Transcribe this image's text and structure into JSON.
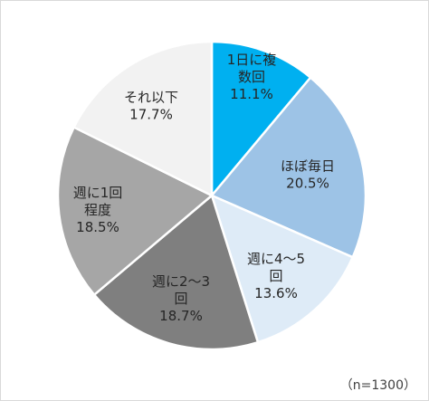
{
  "chart_data": {
    "type": "pie",
    "start_angle_deg": 0,
    "direction": "clockwise",
    "slices": [
      {
        "label": "1日に複数回",
        "label_lines": [
          "1日に複",
          "数回"
        ],
        "value": 11.1,
        "value_text": "11.1%",
        "color": "#00b0f0"
      },
      {
        "label": "ほぼ毎日",
        "label_lines": [
          "ほぼ毎日"
        ],
        "value": 20.5,
        "value_text": "20.5%",
        "color": "#9dc3e6"
      },
      {
        "label": "週に4～5回",
        "label_lines": [
          "週に4～5",
          "回"
        ],
        "value": 13.6,
        "value_text": "13.6%",
        "color": "#deebf7"
      },
      {
        "label": "週に2～3回",
        "label_lines": [
          "週に2～3",
          "回"
        ],
        "value": 18.7,
        "value_text": "18.7%",
        "color": "#7f7f7f"
      },
      {
        "label": "週に1回程度",
        "label_lines": [
          "週に1回",
          "程度"
        ],
        "value": 18.5,
        "value_text": "18.5%",
        "color": "#a6a6a6"
      },
      {
        "label": "それ以下",
        "label_lines": [
          "それ以下"
        ],
        "value": 17.7,
        "value_text": "17.7%",
        "color": "#f2f2f2"
      }
    ]
  },
  "note": "（n=1300）"
}
